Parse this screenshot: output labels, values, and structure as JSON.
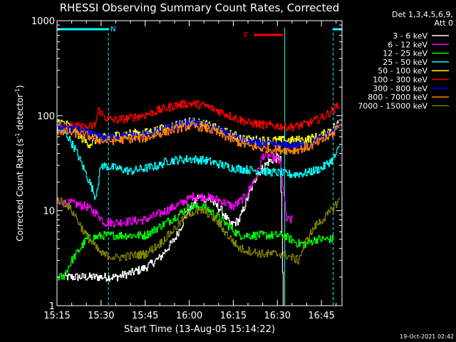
{
  "chart_data": {
    "type": "line",
    "title": "RHESSI Observing Summary Count Rates, Corrected",
    "xlabel": "Start Time (13-Aug-05 15:14:22)",
    "ylabel_main": "Corrected Count Rate (s",
    "ylabel_exp1": "-1",
    "ylabel_mid": " detector",
    "ylabel_exp2": "-1",
    "ylabel_end": ")",
    "yscale": "log",
    "ylim": [
      1,
      1000
    ],
    "xlim_minutes": [
      0,
      97
    ],
    "x_unit": "minutes after 15:15",
    "x_ticks": [
      {
        "minute": 0,
        "label": "15:15"
      },
      {
        "minute": 15,
        "label": "15:30"
      },
      {
        "minute": 30,
        "label": "15:45"
      },
      {
        "minute": 45,
        "label": "16:00"
      },
      {
        "minute": 60,
        "label": "16:15"
      },
      {
        "minute": 75,
        "label": "16:30"
      },
      {
        "minute": 90,
        "label": "16:45"
      }
    ],
    "y_ticks": [
      {
        "value": 1,
        "label": "1"
      },
      {
        "value": 10,
        "label": "10"
      },
      {
        "value": 100,
        "label": "100"
      },
      {
        "value": 1000,
        "label": "1000"
      }
    ],
    "legend_header": [
      "Det 1,3,4,5,6,9,",
      "Att 0"
    ],
    "legend_position": "top-right",
    "timestamp": "19-Oct-2021 02:42",
    "annotations": {
      "night_label": "N",
      "flare_label": "F",
      "night_bar_minutes": [
        [
          0,
          17.5
        ],
        [
          94,
          97
        ]
      ],
      "flare_bar_minutes": [
        67,
        77
      ],
      "night_boundaries_minutes": [
        17.5,
        94
      ],
      "saa_boundary_minutes": 77.5
    },
    "series": [
      {
        "name": "3 - 6 keV",
        "color": "#ffffff",
        "points": [
          [
            2,
            2
          ],
          [
            15,
            2
          ],
          [
            20,
            2
          ],
          [
            25,
            2.2
          ],
          [
            30,
            2.5
          ],
          [
            35,
            3.2
          ],
          [
            40,
            5
          ],
          [
            44,
            9
          ],
          [
            48,
            14
          ],
          [
            52,
            13
          ],
          [
            56,
            10
          ],
          [
            59,
            7
          ],
          [
            62,
            8
          ],
          [
            65,
            14
          ],
          [
            68,
            24
          ],
          [
            72,
            33
          ],
          [
            75,
            36
          ],
          [
            76,
            36
          ],
          [
            77,
            0.9
          ]
        ]
      },
      {
        "name": "6 - 12 keV",
        "color": "#ff00ff",
        "points": [
          [
            0,
            12
          ],
          [
            5,
            12
          ],
          [
            10,
            11
          ],
          [
            14,
            9
          ],
          [
            16,
            7.5
          ],
          [
            20,
            7.5
          ],
          [
            30,
            8
          ],
          [
            40,
            11
          ],
          [
            46,
            14
          ],
          [
            50,
            14
          ],
          [
            55,
            13
          ],
          [
            60,
            11
          ],
          [
            64,
            14
          ],
          [
            68,
            24
          ],
          [
            70,
            38
          ],
          [
            72,
            38
          ],
          [
            74,
            36
          ],
          [
            76,
            32
          ],
          [
            78,
            8
          ],
          [
            80,
            8
          ]
        ]
      },
      {
        "name": "12 - 25 keV",
        "color": "#00ff00",
        "points": [
          [
            0,
            2
          ],
          [
            2,
            2
          ],
          [
            5,
            3
          ],
          [
            10,
            5
          ],
          [
            16,
            5.5
          ],
          [
            20,
            5.5
          ],
          [
            30,
            5.5
          ],
          [
            40,
            8.5
          ],
          [
            45,
            11
          ],
          [
            50,
            11
          ],
          [
            54,
            9
          ],
          [
            58,
            7
          ],
          [
            62,
            5.5
          ],
          [
            70,
            5.5
          ],
          [
            77,
            5.5
          ],
          [
            82,
            4.5
          ],
          [
            85,
            4.5
          ],
          [
            88,
            5
          ],
          [
            90,
            5
          ],
          [
            94,
            5
          ]
        ]
      },
      {
        "name": "25 - 50 keV",
        "color": "#00ffff",
        "points": [
          [
            0,
            72
          ],
          [
            3,
            65
          ],
          [
            6,
            45
          ],
          [
            9,
            28
          ],
          [
            11,
            20
          ],
          [
            13,
            14
          ],
          [
            15,
            30
          ],
          [
            20,
            28
          ],
          [
            25,
            26
          ],
          [
            30,
            28
          ],
          [
            35,
            30
          ],
          [
            37,
            33
          ],
          [
            40,
            34
          ],
          [
            45,
            35
          ],
          [
            50,
            34
          ],
          [
            55,
            31
          ],
          [
            60,
            28
          ],
          [
            65,
            27
          ],
          [
            70,
            26
          ],
          [
            75,
            25
          ],
          [
            80,
            24
          ],
          [
            85,
            25
          ],
          [
            90,
            28
          ],
          [
            94,
            35
          ],
          [
            96,
            46
          ]
        ]
      },
      {
        "name": "50 - 100 keV",
        "color": "#ffff00",
        "points": [
          [
            0,
            88
          ],
          [
            3,
            82
          ],
          [
            6,
            70
          ],
          [
            9,
            55
          ],
          [
            11,
            50
          ],
          [
            13,
            55
          ],
          [
            15,
            58
          ],
          [
            20,
            62
          ],
          [
            25,
            65
          ],
          [
            30,
            66
          ],
          [
            35,
            72
          ],
          [
            40,
            80
          ],
          [
            45,
            87
          ],
          [
            50,
            82
          ],
          [
            55,
            72
          ],
          [
            60,
            62
          ],
          [
            65,
            56
          ],
          [
            70,
            55
          ],
          [
            75,
            55
          ],
          [
            80,
            55
          ],
          [
            85,
            56
          ],
          [
            90,
            62
          ],
          [
            94,
            75
          ],
          [
            96,
            85
          ]
        ]
      },
      {
        "name": "100 - 300 keV",
        "color": "#ff0000",
        "points": [
          [
            0,
            82
          ],
          [
            5,
            78
          ],
          [
            10,
            75
          ],
          [
            13,
            80
          ],
          [
            14,
            115
          ],
          [
            17,
            92
          ],
          [
            20,
            90
          ],
          [
            25,
            95
          ],
          [
            30,
            102
          ],
          [
            35,
            115
          ],
          [
            40,
            128
          ],
          [
            45,
            135
          ],
          [
            50,
            128
          ],
          [
            55,
            112
          ],
          [
            60,
            96
          ],
          [
            65,
            84
          ],
          [
            70,
            80
          ],
          [
            75,
            78
          ],
          [
            80,
            76
          ],
          [
            85,
            82
          ],
          [
            90,
            95
          ],
          [
            94,
            115
          ],
          [
            96,
            135
          ]
        ]
      },
      {
        "name": "300 - 800 keV",
        "color": "#0000ff",
        "points": [
          [
            0,
            76
          ],
          [
            5,
            72
          ],
          [
            10,
            68
          ],
          [
            15,
            58
          ],
          [
            20,
            60
          ],
          [
            25,
            62
          ],
          [
            30,
            63
          ],
          [
            35,
            70
          ],
          [
            40,
            78
          ],
          [
            45,
            84
          ],
          [
            50,
            80
          ],
          [
            55,
            70
          ],
          [
            60,
            60
          ],
          [
            65,
            53
          ],
          [
            70,
            50
          ],
          [
            75,
            49
          ],
          [
            80,
            48
          ],
          [
            85,
            50
          ],
          [
            90,
            58
          ],
          [
            94,
            70
          ],
          [
            96,
            85
          ]
        ]
      },
      {
        "name": "800 - 7000 keV",
        "color": "#ff8000",
        "points": [
          [
            0,
            70
          ],
          [
            5,
            66
          ],
          [
            10,
            62
          ],
          [
            15,
            54
          ],
          [
            20,
            55
          ],
          [
            25,
            57
          ],
          [
            30,
            58
          ],
          [
            35,
            65
          ],
          [
            40,
            72
          ],
          [
            45,
            78
          ],
          [
            50,
            75
          ],
          [
            55,
            65
          ],
          [
            60,
            55
          ],
          [
            65,
            48
          ],
          [
            70,
            45
          ],
          [
            75,
            44
          ],
          [
            80,
            43
          ],
          [
            85,
            46
          ],
          [
            90,
            54
          ],
          [
            94,
            65
          ],
          [
            96,
            80
          ]
        ]
      },
      {
        "name": "7000 - 15000 keV",
        "color": "#808000",
        "points": [
          [
            0,
            13
          ],
          [
            3,
            12
          ],
          [
            6,
            9
          ],
          [
            9,
            6
          ],
          [
            12,
            4.5
          ],
          [
            15,
            3.5
          ],
          [
            20,
            3.2
          ],
          [
            30,
            3.5
          ],
          [
            35,
            4.5
          ],
          [
            40,
            6.5
          ],
          [
            45,
            9.5
          ],
          [
            50,
            10
          ],
          [
            54,
            8
          ],
          [
            58,
            5.5
          ],
          [
            62,
            4
          ],
          [
            70,
            3.5
          ],
          [
            77,
            3.5
          ],
          [
            82,
            3
          ],
          [
            85,
            5
          ],
          [
            88,
            7
          ],
          [
            92,
            9
          ],
          [
            96,
            13
          ]
        ]
      }
    ]
  }
}
